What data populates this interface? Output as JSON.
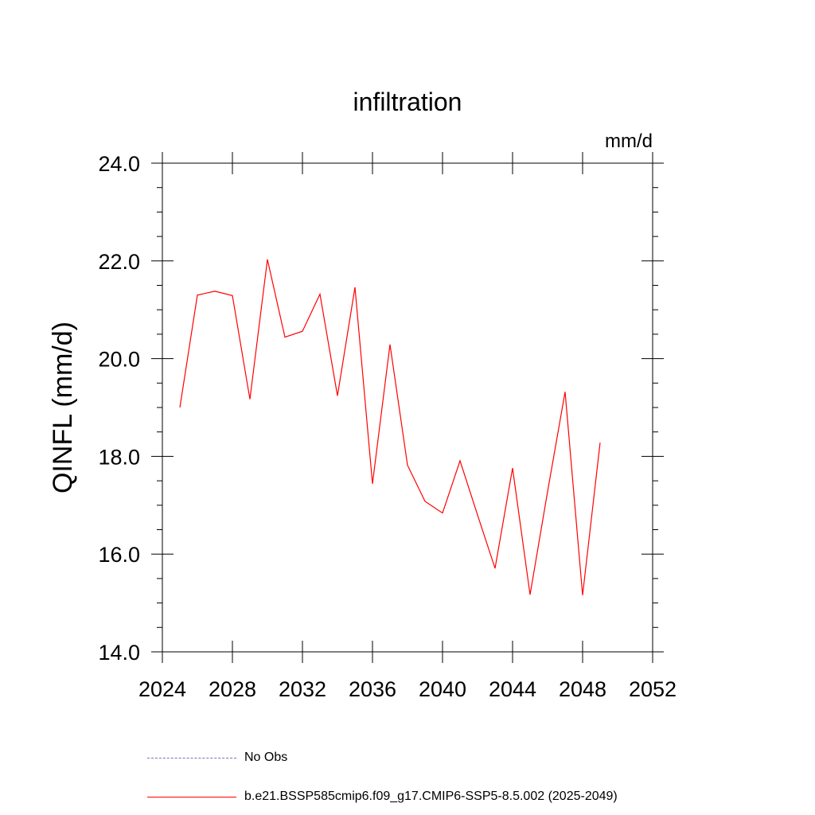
{
  "chart_data": {
    "type": "line",
    "title": "infiltration",
    "units_label": "mm/d",
    "ylabel": "QINFL  (mm/d)",
    "xlabel": "",
    "xlim": [
      2024,
      2052
    ],
    "ylim": [
      14.0,
      24.0
    ],
    "x_ticks": [
      2024,
      2028,
      2032,
      2036,
      2040,
      2044,
      2048,
      2052
    ],
    "x_tick_labels": [
      "2024",
      "2028",
      "2032",
      "2036",
      "2040",
      "2044",
      "2048",
      "2052"
    ],
    "y_ticks": [
      14.0,
      16.0,
      18.0,
      20.0,
      22.0,
      24.0
    ],
    "y_tick_labels": [
      "14.0",
      "16.0",
      "18.0",
      "20.0",
      "22.0",
      "24.0"
    ],
    "x_minor_step": 1,
    "y_minor_step": 0.5,
    "grid": false,
    "series": [
      {
        "name": "b.e21.BSSP585cmip6.f09_g17.CMIP6-SSP5-8.5.002 (2025-2049)",
        "color": "#ff0000",
        "x": [
          2025,
          2026,
          2027,
          2028,
          2029,
          2030,
          2031,
          2032,
          2033,
          2034,
          2035,
          2036,
          2037,
          2038,
          2039,
          2040,
          2041,
          2042,
          2043,
          2044,
          2045,
          2046,
          2047,
          2048,
          2049
        ],
        "values": [
          19.0,
          21.3,
          21.38,
          21.29,
          19.17,
          22.03,
          20.44,
          20.56,
          21.32,
          19.24,
          21.46,
          17.44,
          20.29,
          17.82,
          17.08,
          16.84,
          17.91,
          16.8,
          15.71,
          17.76,
          15.17,
          17.28,
          19.32,
          15.16,
          18.28
        ]
      }
    ],
    "legend": {
      "placement": "bottom-left",
      "entries": [
        {
          "label": "No Obs",
          "style": "dashed",
          "color": "#7a72b8"
        },
        {
          "label": "b.e21.BSSP585cmip6.f09_g17.CMIP6-SSP5-8.5.002 (2025-2049)",
          "style": "solid",
          "color": "#ff0000"
        }
      ]
    }
  }
}
